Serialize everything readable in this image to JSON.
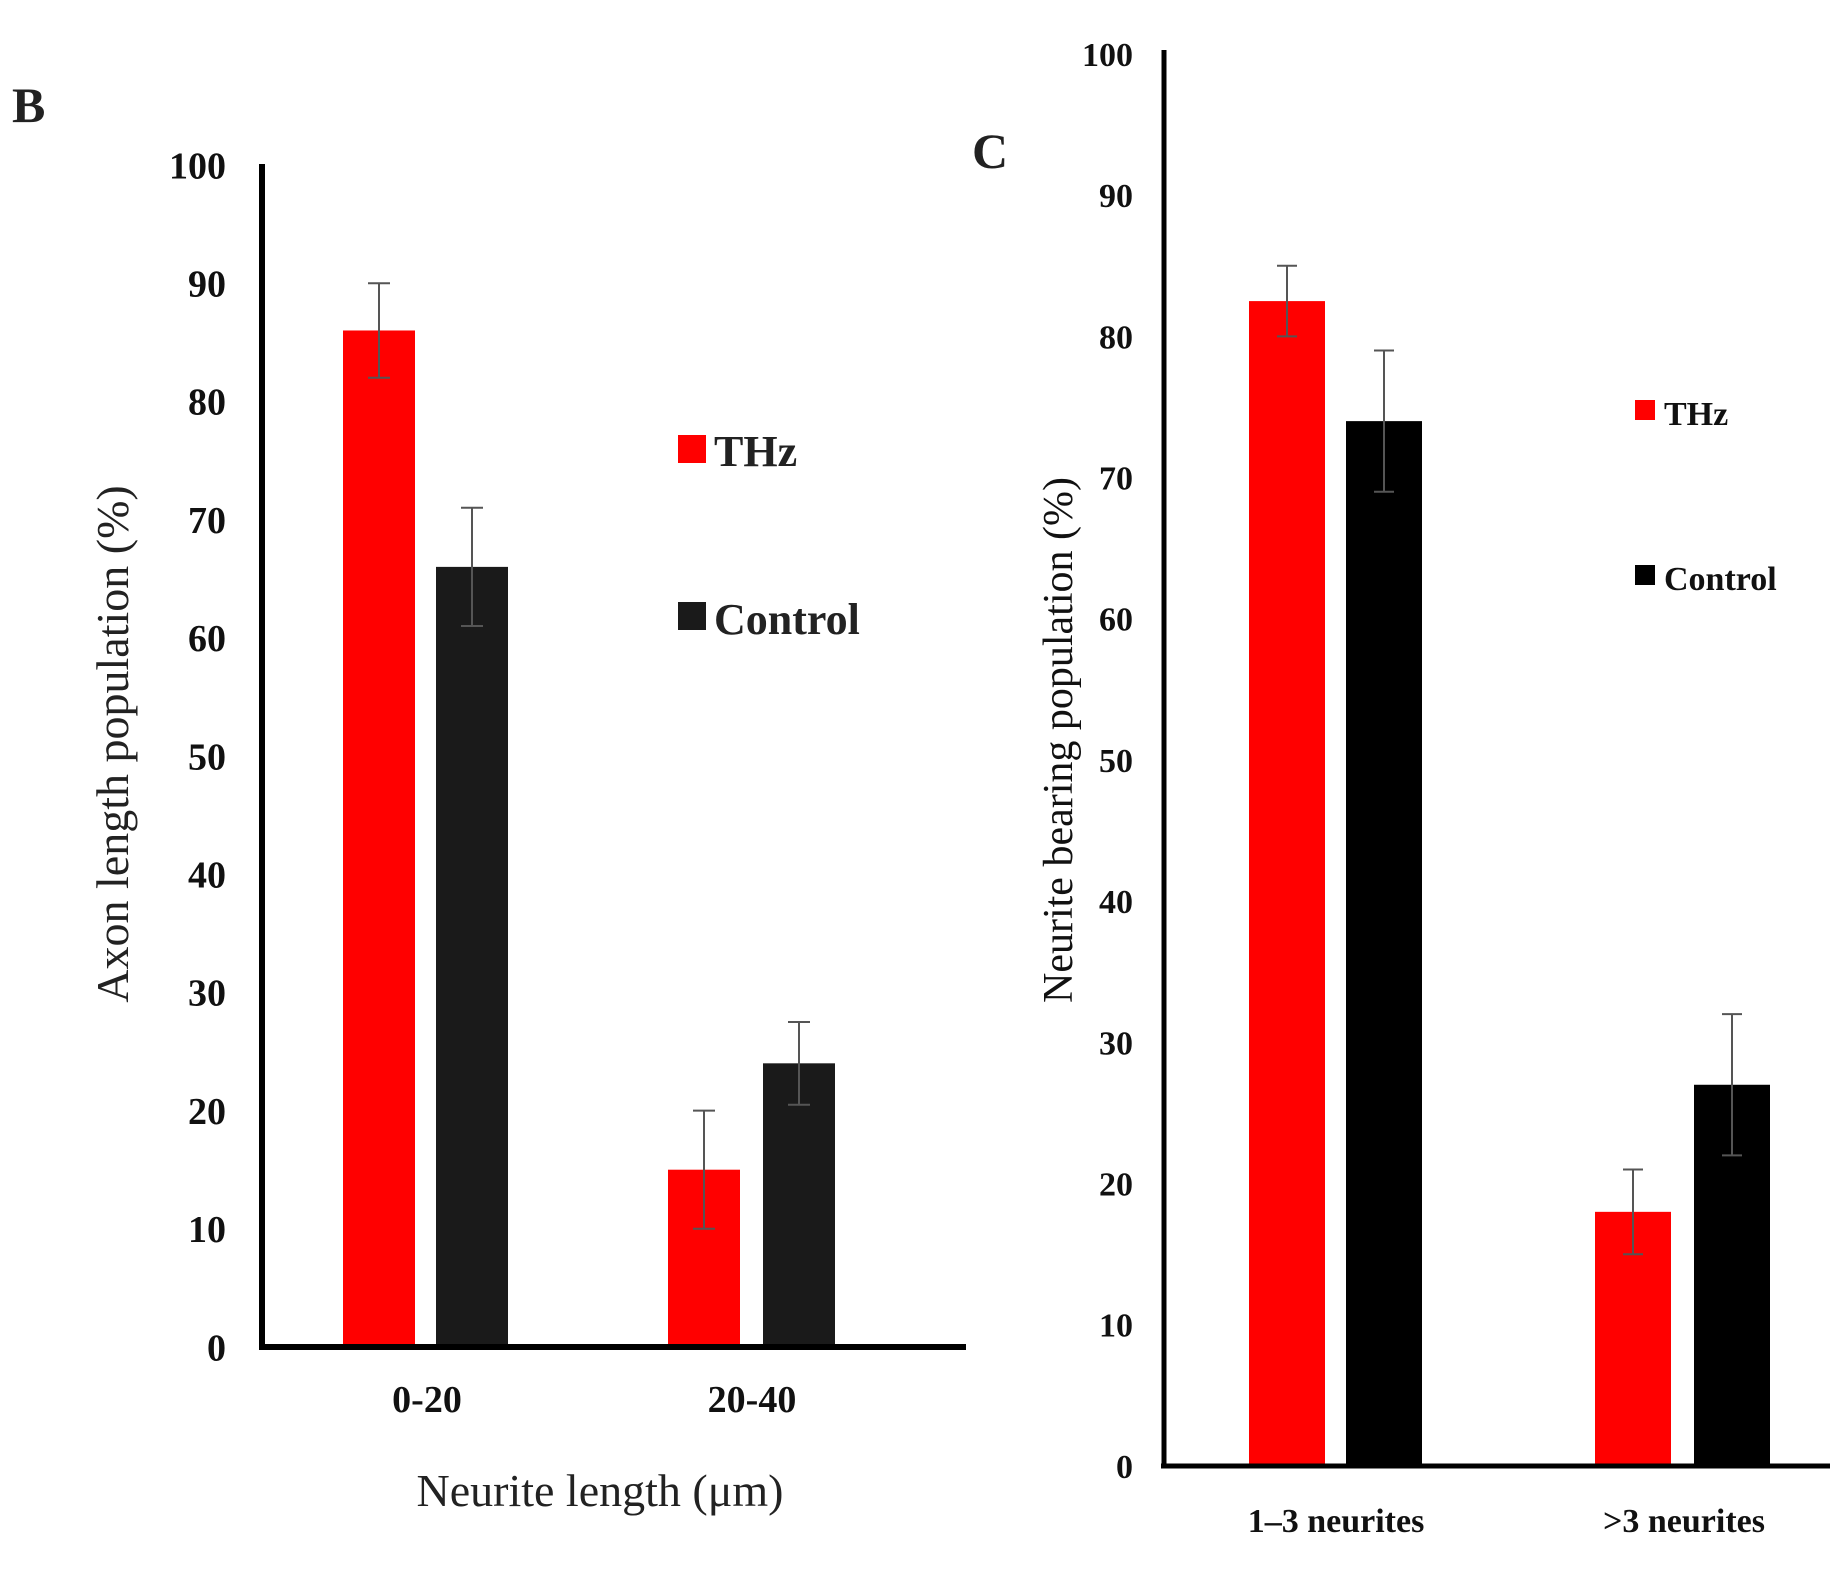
{
  "chart_data": [
    {
      "panel": "B",
      "type": "bar",
      "categories": [
        "0-20",
        "20-40"
      ],
      "series": [
        {
          "name": "THz",
          "color": "#ff0000",
          "values": [
            86,
            15
          ],
          "errors": [
            4,
            5
          ]
        },
        {
          "name": "Control",
          "color": "#1a1a1a",
          "values": [
            66,
            24
          ],
          "errors": [
            5,
            3.5
          ]
        }
      ],
      "xlabel": "Neurite length (μm)",
      "ylabel": "Axon length population (%)",
      "ylim": [
        0,
        100
      ],
      "yticks": [
        "0",
        "10",
        "20",
        "30",
        "40",
        "50",
        "60",
        "70",
        "80",
        "90",
        "100"
      ],
      "legend_position": "right"
    },
    {
      "panel": "C",
      "type": "bar",
      "categories": [
        "1–3 neurites",
        ">3 neurites"
      ],
      "series": [
        {
          "name": "THz",
          "color": "#ff0000",
          "values": [
            82.5,
            18
          ],
          "errors": [
            2.5,
            3
          ]
        },
        {
          "name": "Control",
          "color": "#000000",
          "values": [
            74,
            27
          ],
          "errors": [
            5,
            5
          ]
        }
      ],
      "xlabel": "",
      "ylabel": "Neurite bearing population (%)",
      "ylim": [
        0,
        100
      ],
      "yticks": [
        "0",
        "10",
        "20",
        "30",
        "40",
        "50",
        "60",
        "70",
        "80",
        "90",
        "100"
      ],
      "legend_position": "right"
    }
  ]
}
